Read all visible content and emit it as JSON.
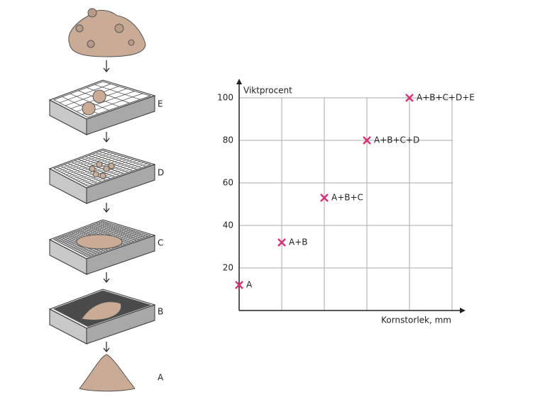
{
  "chart_data": {
    "type": "scatter",
    "y_label": "Viktprocent",
    "x_label": "Kornstorlek, mm",
    "categories": [
      "A",
      "A+B",
      "A+B+C",
      "A+B+C+D",
      "A+B+C+D+E"
    ],
    "values": [
      12,
      32,
      53,
      80,
      100
    ],
    "color": "#d6337a",
    "ylim": [
      0,
      100
    ],
    "yticks": [
      20,
      40,
      60,
      80,
      100
    ],
    "grid": true
  },
  "sieves": {
    "labels": [
      "E",
      "D",
      "C",
      "B",
      "A"
    ]
  }
}
